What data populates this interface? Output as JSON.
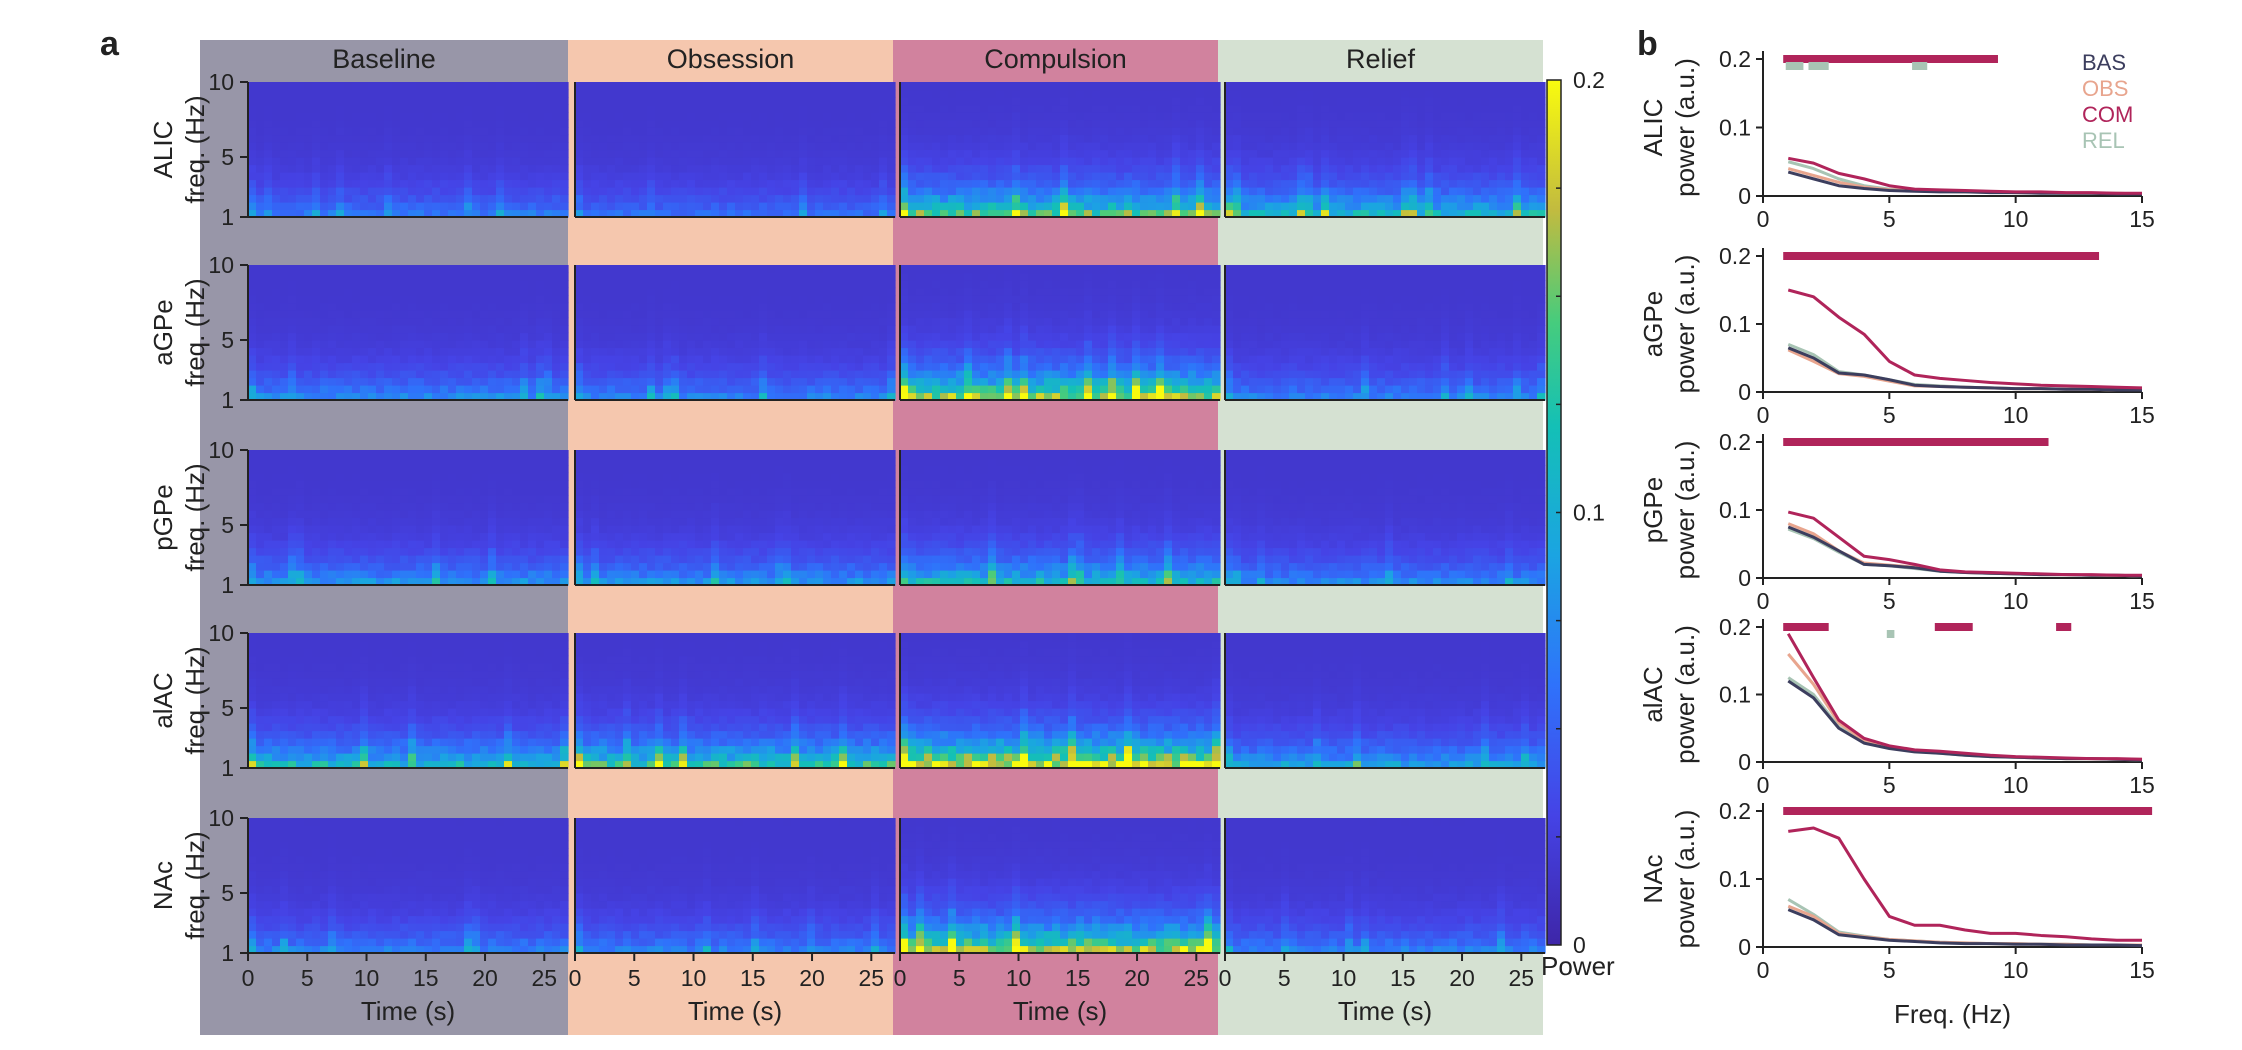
{
  "figure": {
    "panel_a_label": "a",
    "panel_b_label": "b",
    "colorbar_label": "Power",
    "colorbar_ticks": [
      "0.2",
      "0.1",
      "0"
    ],
    "time_axis_label": "Time (s)",
    "freq_axis_label": "Freq. (Hz)"
  },
  "colors": {
    "BAS": "#3c3e5e",
    "OBS": "#e8a58e",
    "COM": "#b0245a",
    "REL": "#a8c4b4",
    "bg_baseline": "#9896a8",
    "bg_obsession": "#f5c7ae",
    "bg_compulsion": "#d1829e",
    "bg_relief": "#d5e1d2"
  },
  "chart_data": [
    {
      "type": "heatmap",
      "panel": "a",
      "conditions": [
        "Baseline",
        "Obsession",
        "Compulsion",
        "Relief"
      ],
      "regions": [
        "ALIC",
        "aGPe",
        "pGPe",
        "alAC",
        "NAc"
      ],
      "ylabel_suffix": "freq. (Hz)",
      "y_ticks": [
        "10",
        "5",
        "1"
      ],
      "x_ticks": [
        "0",
        "5",
        "10",
        "15",
        "20",
        "25"
      ],
      "xlabel": "Time (s)",
      "xlim": [
        0,
        27
      ],
      "ylim": [
        1,
        10
      ],
      "colorbar": {
        "label": "Power",
        "range": [
          0,
          0.2
        ],
        "ticks": [
          "0.2",
          "0.1",
          "0"
        ],
        "colormap": "parula"
      },
      "low_freq_band_power": {
        "ALIC": [
          0.045,
          0.04,
          0.12,
          0.09
        ],
        "aGPe": [
          0.055,
          0.05,
          0.14,
          0.05
        ],
        "pGPe": [
          0.06,
          0.06,
          0.09,
          0.055
        ],
        "alAC": [
          0.09,
          0.11,
          0.17,
          0.07
        ],
        "NAc": [
          0.05,
          0.05,
          0.15,
          0.05
        ]
      }
    },
    {
      "type": "line",
      "panel": "b",
      "title": "ALIC",
      "xlabel": "",
      "ylabel": "power (a.u.)",
      "xlim": [
        0,
        15
      ],
      "ylim": [
        0,
        0.2
      ],
      "x_ticks": [
        "0",
        "5",
        "10",
        "15"
      ],
      "y_ticks": [
        "0.2",
        "0.1",
        "0"
      ],
      "x": [
        1,
        2,
        3,
        4,
        5,
        6,
        7,
        8,
        9,
        10,
        11,
        12,
        13,
        14,
        15
      ],
      "series": [
        {
          "name": "BAS",
          "values": [
            0.035,
            0.025,
            0.015,
            0.011,
            0.008,
            0.007,
            0.006,
            0.006,
            0.005,
            0.005,
            0.004,
            0.004,
            0.004,
            0.003,
            0.003
          ]
        },
        {
          "name": "OBS",
          "values": [
            0.04,
            0.03,
            0.02,
            0.013,
            0.009,
            0.008,
            0.007,
            0.006,
            0.006,
            0.005,
            0.005,
            0.004,
            0.004,
            0.004,
            0.003
          ]
        },
        {
          "name": "COM",
          "values": [
            0.055,
            0.048,
            0.033,
            0.025,
            0.015,
            0.01,
            0.009,
            0.008,
            0.007,
            0.006,
            0.006,
            0.005,
            0.005,
            0.004,
            0.004
          ]
        },
        {
          "name": "REL",
          "values": [
            0.05,
            0.04,
            0.025,
            0.015,
            0.01,
            0.008,
            0.007,
            0.006,
            0.006,
            0.005,
            0.005,
            0.004,
            0.004,
            0.004,
            0.003
          ]
        }
      ],
      "sig_bars": [
        {
          "series": "COM",
          "ranges": [
            [
              0.8,
              9.3
            ]
          ]
        },
        {
          "series": "REL",
          "ranges": [
            [
              0.9,
              1.6
            ],
            [
              1.8,
              2.6
            ],
            [
              5.9,
              6.5
            ]
          ]
        }
      ],
      "legend": [
        "BAS",
        "OBS",
        "COM",
        "REL"
      ],
      "legend_position": "top-right"
    },
    {
      "type": "line",
      "panel": "b",
      "title": "aGPe",
      "xlabel": "",
      "ylabel": "power (a.u.)",
      "xlim": [
        0,
        15
      ],
      "ylim": [
        0,
        0.2
      ],
      "x_ticks": [
        "0",
        "5",
        "10",
        "15"
      ],
      "y_ticks": [
        "0.2",
        "0.1",
        "0"
      ],
      "x": [
        1,
        2,
        3,
        4,
        5,
        6,
        7,
        8,
        9,
        10,
        11,
        12,
        13,
        14,
        15
      ],
      "series": [
        {
          "name": "BAS",
          "values": [
            0.065,
            0.05,
            0.028,
            0.025,
            0.018,
            0.01,
            0.008,
            0.007,
            0.006,
            0.005,
            0.005,
            0.004,
            0.004,
            0.003,
            0.003
          ]
        },
        {
          "name": "OBS",
          "values": [
            0.062,
            0.045,
            0.027,
            0.023,
            0.016,
            0.009,
            0.008,
            0.007,
            0.006,
            0.005,
            0.005,
            0.004,
            0.004,
            0.003,
            0.003
          ]
        },
        {
          "name": "COM",
          "values": [
            0.15,
            0.14,
            0.11,
            0.085,
            0.045,
            0.025,
            0.02,
            0.017,
            0.014,
            0.012,
            0.01,
            0.009,
            0.008,
            0.007,
            0.006
          ]
        },
        {
          "name": "REL",
          "values": [
            0.07,
            0.055,
            0.03,
            0.025,
            0.018,
            0.011,
            0.009,
            0.007,
            0.006,
            0.005,
            0.005,
            0.004,
            0.004,
            0.003,
            0.003
          ]
        }
      ],
      "sig_bars": [
        {
          "series": "COM",
          "ranges": [
            [
              0.8,
              13.3
            ]
          ]
        }
      ]
    },
    {
      "type": "line",
      "panel": "b",
      "title": "pGPe",
      "xlabel": "",
      "ylabel": "power (a.u.)",
      "xlim": [
        0,
        15
      ],
      "ylim": [
        0,
        0.2
      ],
      "x_ticks": [
        "0",
        "5",
        "10",
        "15"
      ],
      "y_ticks": [
        "0.2",
        "0.1",
        "0"
      ],
      "x": [
        1,
        2,
        3,
        4,
        5,
        6,
        7,
        8,
        9,
        10,
        11,
        12,
        13,
        14,
        15
      ],
      "series": [
        {
          "name": "BAS",
          "values": [
            0.075,
            0.06,
            0.04,
            0.02,
            0.018,
            0.015,
            0.01,
            0.008,
            0.007,
            0.006,
            0.005,
            0.005,
            0.004,
            0.004,
            0.003
          ]
        },
        {
          "name": "OBS",
          "values": [
            0.08,
            0.065,
            0.04,
            0.022,
            0.019,
            0.016,
            0.011,
            0.008,
            0.007,
            0.006,
            0.005,
            0.005,
            0.004,
            0.004,
            0.003
          ]
        },
        {
          "name": "COM",
          "values": [
            0.097,
            0.088,
            0.06,
            0.032,
            0.027,
            0.02,
            0.012,
            0.009,
            0.008,
            0.007,
            0.006,
            0.005,
            0.005,
            0.004,
            0.004
          ]
        },
        {
          "name": "REL",
          "values": [
            0.072,
            0.058,
            0.038,
            0.02,
            0.018,
            0.014,
            0.01,
            0.008,
            0.007,
            0.006,
            0.005,
            0.005,
            0.004,
            0.004,
            0.003
          ]
        }
      ],
      "sig_bars": [
        {
          "series": "COM",
          "ranges": [
            [
              0.8,
              11.3
            ]
          ]
        }
      ]
    },
    {
      "type": "line",
      "panel": "b",
      "title": "alAC",
      "xlabel": "",
      "ylabel": "power (a.u.)",
      "xlim": [
        0,
        15
      ],
      "ylim": [
        0,
        0.2
      ],
      "x_ticks": [
        "0",
        "5",
        "10",
        "15"
      ],
      "y_ticks": [
        "0.2",
        "0.1",
        "0"
      ],
      "x": [
        1,
        2,
        3,
        4,
        5,
        6,
        7,
        8,
        9,
        10,
        11,
        12,
        13,
        14,
        15
      ],
      "series": [
        {
          "name": "BAS",
          "values": [
            0.12,
            0.095,
            0.05,
            0.028,
            0.02,
            0.015,
            0.013,
            0.01,
            0.008,
            0.007,
            0.006,
            0.005,
            0.005,
            0.004,
            0.003
          ]
        },
        {
          "name": "OBS",
          "values": [
            0.16,
            0.115,
            0.058,
            0.032,
            0.022,
            0.017,
            0.014,
            0.011,
            0.009,
            0.007,
            0.006,
            0.005,
            0.005,
            0.004,
            0.004
          ]
        },
        {
          "name": "COM",
          "values": [
            0.19,
            0.125,
            0.062,
            0.035,
            0.024,
            0.018,
            0.016,
            0.013,
            0.01,
            0.008,
            0.007,
            0.006,
            0.005,
            0.005,
            0.004
          ]
        },
        {
          "name": "REL",
          "values": [
            0.125,
            0.1,
            0.052,
            0.03,
            0.021,
            0.016,
            0.013,
            0.01,
            0.008,
            0.007,
            0.006,
            0.005,
            0.005,
            0.004,
            0.003
          ]
        }
      ],
      "sig_bars": [
        {
          "series": "COM",
          "ranges": [
            [
              0.8,
              2.6
            ],
            [
              6.8,
              8.3
            ],
            [
              11.6,
              12.2
            ]
          ]
        },
        {
          "series": "REL",
          "ranges": [
            [
              4.9,
              5.2
            ]
          ]
        }
      ]
    },
    {
      "type": "line",
      "panel": "b",
      "title": "NAc",
      "xlabel": "Freq. (Hz)",
      "ylabel": "power (a.u.)",
      "xlim": [
        0,
        15
      ],
      "ylim": [
        0,
        0.2
      ],
      "x_ticks": [
        "0",
        "5",
        "10",
        "15"
      ],
      "y_ticks": [
        "0.2",
        "0.1",
        "0"
      ],
      "x": [
        1,
        2,
        3,
        4,
        5,
        6,
        7,
        8,
        9,
        10,
        11,
        12,
        13,
        14,
        15
      ],
      "series": [
        {
          "name": "BAS",
          "values": [
            0.055,
            0.04,
            0.018,
            0.014,
            0.01,
            0.008,
            0.006,
            0.005,
            0.005,
            0.004,
            0.004,
            0.003,
            0.003,
            0.003,
            0.002
          ]
        },
        {
          "name": "OBS",
          "values": [
            0.06,
            0.045,
            0.02,
            0.015,
            0.011,
            0.009,
            0.007,
            0.006,
            0.005,
            0.005,
            0.004,
            0.004,
            0.003,
            0.003,
            0.003
          ]
        },
        {
          "name": "COM",
          "values": [
            0.17,
            0.175,
            0.16,
            0.1,
            0.045,
            0.032,
            0.032,
            0.025,
            0.02,
            0.02,
            0.017,
            0.015,
            0.012,
            0.01,
            0.01
          ]
        },
        {
          "name": "REL",
          "values": [
            0.07,
            0.048,
            0.022,
            0.016,
            0.011,
            0.009,
            0.007,
            0.006,
            0.005,
            0.005,
            0.004,
            0.004,
            0.003,
            0.003,
            0.003
          ]
        }
      ],
      "sig_bars": [
        {
          "series": "COM",
          "ranges": [
            [
              0.8,
              15.4
            ]
          ]
        }
      ]
    }
  ]
}
